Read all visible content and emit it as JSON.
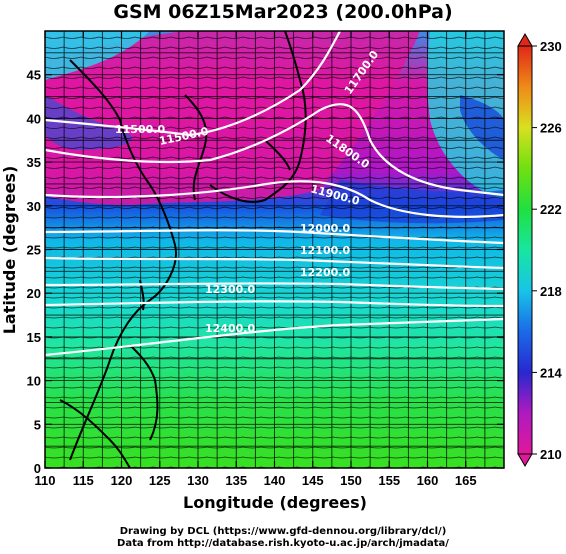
{
  "title": "GSM 06Z15Mar2023 (200.0hPa)",
  "map": {
    "xlabel": "Longitude (degrees)",
    "ylabel": "Latitude  (degrees)",
    "lon_range": [
      110,
      170
    ],
    "lat_range": [
      0,
      50
    ],
    "lon_ticks": [
      "110",
      "115",
      "120",
      "125",
      "130",
      "135",
      "140",
      "145",
      "150",
      "155",
      "160",
      "165"
    ],
    "lat_ticks": [
      "0",
      "5",
      "10",
      "15",
      "20",
      "25",
      "30",
      "35",
      "40",
      "45"
    ],
    "contour_labels": [
      "11500.0",
      "11500.0",
      "11700.0",
      "11800.0",
      "11900.0",
      "12000.0",
      "12100.0",
      "12200.0",
      "12300.0",
      "12400.0"
    ]
  },
  "colorbar": {
    "range": [
      210,
      230
    ],
    "tick_labels": [
      "230",
      "226",
      "222",
      "218",
      "214",
      "210"
    ],
    "colors": [
      "#e0189a",
      "#b01ac0",
      "#2828d0",
      "#1a6ae8",
      "#18c4e8",
      "#18e6a0",
      "#20e040",
      "#70e010",
      "#d8e020",
      "#f08a18",
      "#e02818"
    ]
  },
  "credits": {
    "line1": "Drawing by DCL (https://www.gfd-dennou.org/library/dcl/)",
    "line2": "Data from http://database.rish.kyoto-u.ac.jp/arch/jmadata/"
  }
}
